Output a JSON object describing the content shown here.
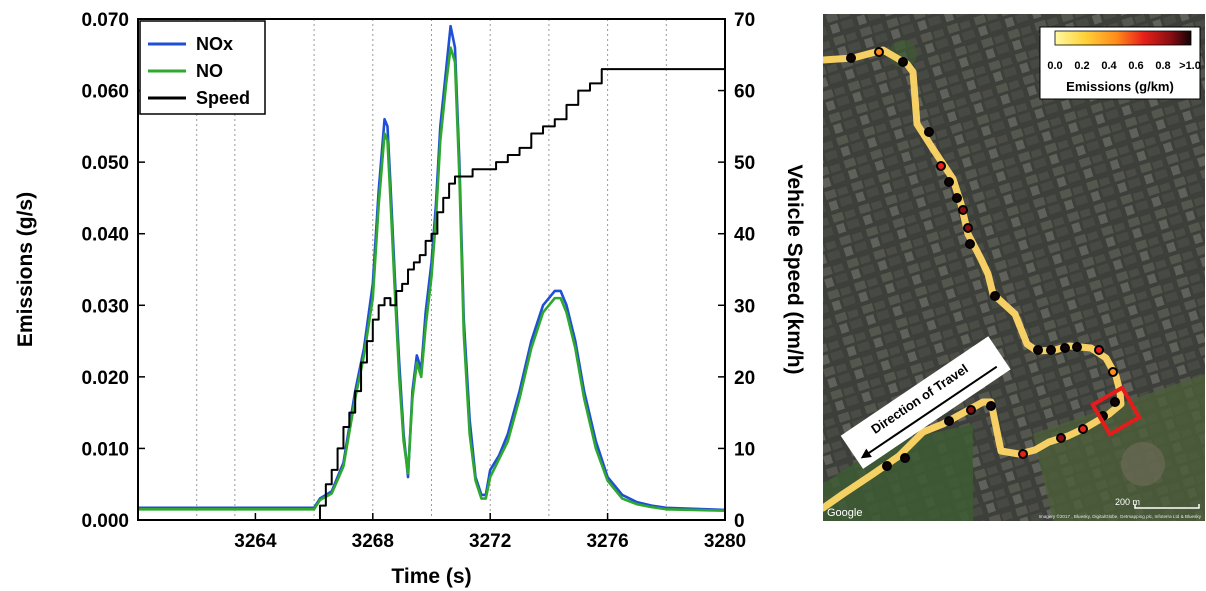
{
  "chart_data": {
    "type": "line",
    "xlabel": "Time (s)",
    "ylabel": "Emissions (g/s)",
    "y2label": "Vehicle Speed (km/h)",
    "xlim": [
      3260,
      3280
    ],
    "ylim": [
      0,
      0.07
    ],
    "y2lim": [
      0,
      70
    ],
    "xticks": [
      "3264",
      "3268",
      "3272",
      "3276",
      "3280"
    ],
    "xtick_values": [
      3264,
      3268,
      3272,
      3276,
      3280
    ],
    "yticks": [
      "0.000",
      "0.010",
      "0.020",
      "0.030",
      "0.040",
      "0.050",
      "0.060",
      "0.070"
    ],
    "ytick_values": [
      0,
      0.01,
      0.02,
      0.03,
      0.04,
      0.05,
      0.06,
      0.07
    ],
    "y2ticks": [
      "0",
      "10",
      "20",
      "30",
      "40",
      "50",
      "60",
      "70"
    ],
    "y2tick_values": [
      0,
      10,
      20,
      30,
      40,
      50,
      60,
      70
    ],
    "vgrid": [
      3262,
      3263.3,
      3266,
      3268,
      3270,
      3272,
      3274,
      3276,
      3278
    ],
    "legend_position": "top-left",
    "series": [
      {
        "name": "NOx",
        "axis": "left",
        "color": "#1f4fd6",
        "x": [
          3260,
          3266,
          3266.2,
          3266.6,
          3267.0,
          3267.4,
          3267.7,
          3268.0,
          3268.2,
          3268.4,
          3268.5,
          3268.6,
          3268.75,
          3268.9,
          3269.05,
          3269.2,
          3269.35,
          3269.5,
          3269.65,
          3269.8,
          3270.0,
          3270.15,
          3270.3,
          3270.5,
          3270.65,
          3270.8,
          3270.95,
          3271.1,
          3271.3,
          3271.5,
          3271.7,
          3271.85,
          3272.0,
          3272.3,
          3272.6,
          3273.0,
          3273.4,
          3273.8,
          3274.2,
          3274.4,
          3274.6,
          3274.9,
          3275.2,
          3275.6,
          3276.0,
          3276.5,
          3277.0,
          3277.5,
          3278,
          3280
        ],
        "y": [
          0.0017,
          0.0017,
          0.003,
          0.004,
          0.008,
          0.018,
          0.024,
          0.033,
          0.046,
          0.056,
          0.055,
          0.047,
          0.034,
          0.022,
          0.012,
          0.006,
          0.018,
          0.023,
          0.021,
          0.029,
          0.036,
          0.044,
          0.055,
          0.063,
          0.069,
          0.066,
          0.05,
          0.028,
          0.014,
          0.006,
          0.0035,
          0.0035,
          0.007,
          0.009,
          0.012,
          0.018,
          0.025,
          0.03,
          0.032,
          0.032,
          0.03,
          0.025,
          0.018,
          0.011,
          0.006,
          0.0035,
          0.0025,
          0.002,
          0.0017,
          0.0014
        ]
      },
      {
        "name": "NO",
        "axis": "left",
        "color": "#2ea82e",
        "x": [
          3260,
          3266,
          3266.2,
          3266.6,
          3267.0,
          3267.4,
          3267.7,
          3268.0,
          3268.2,
          3268.4,
          3268.5,
          3268.6,
          3268.75,
          3268.9,
          3269.05,
          3269.2,
          3269.35,
          3269.5,
          3269.65,
          3269.8,
          3270.0,
          3270.15,
          3270.3,
          3270.5,
          3270.65,
          3270.8,
          3270.95,
          3271.1,
          3271.3,
          3271.5,
          3271.7,
          3271.85,
          3272.0,
          3272.3,
          3272.6,
          3273.0,
          3273.4,
          3273.8,
          3274.2,
          3274.4,
          3274.6,
          3274.9,
          3275.2,
          3275.6,
          3276.0,
          3276.5,
          3277.0,
          3277.5,
          3278,
          3280
        ],
        "y": [
          0.0015,
          0.0015,
          0.0028,
          0.0037,
          0.0075,
          0.017,
          0.023,
          0.031,
          0.044,
          0.054,
          0.053,
          0.045,
          0.032,
          0.02,
          0.011,
          0.0065,
          0.017,
          0.022,
          0.02,
          0.027,
          0.034,
          0.042,
          0.053,
          0.061,
          0.066,
          0.064,
          0.048,
          0.026,
          0.012,
          0.0055,
          0.003,
          0.003,
          0.006,
          0.0085,
          0.011,
          0.017,
          0.024,
          0.029,
          0.031,
          0.031,
          0.029,
          0.024,
          0.017,
          0.01,
          0.0055,
          0.003,
          0.0022,
          0.0018,
          0.0015,
          0.0013
        ]
      },
      {
        "name": "Speed",
        "axis": "right",
        "color": "#000000",
        "step": true,
        "x": [
          3260,
          3266.2,
          3266.4,
          3266.6,
          3266.8,
          3267.0,
          3267.2,
          3267.4,
          3267.6,
          3267.8,
          3268.0,
          3268.2,
          3268.4,
          3268.6,
          3268.8,
          3269.0,
          3269.2,
          3269.4,
          3269.6,
          3269.8,
          3270.0,
          3270.2,
          3270.4,
          3270.6,
          3270.8,
          3271.0,
          3271.4,
          3271.8,
          3272.2,
          3272.6,
          3273.0,
          3273.4,
          3273.8,
          3274.2,
          3274.6,
          3275.0,
          3275.4,
          3275.8,
          3280
        ],
        "y": [
          0,
          2,
          5,
          7,
          10,
          13,
          15,
          18,
          22,
          25,
          28,
          30,
          31,
          30,
          32,
          33,
          35,
          36,
          37,
          39,
          40,
          43,
          45,
          47,
          48,
          48,
          49,
          49,
          50,
          51,
          52,
          54,
          55,
          56,
          58,
          60,
          61,
          63,
          63
        ]
      }
    ]
  },
  "map": {
    "legend_title": "Emissions (g/km)",
    "legend_ticks": [
      "0.0",
      "0.2",
      "0.4",
      "0.6",
      "0.8",
      ">1.0"
    ],
    "gradient_colors": [
      "#fff9a0",
      "#ffd23a",
      "#ff8c1a",
      "#e8201a",
      "#8a0e12",
      "#120406"
    ],
    "arrow_label": "Direction of Travel",
    "scale_label": "200 m",
    "google_text": "Google",
    "imagery_credit": "Imagery ©2017 , Bluesky, DigitalGlobe, Getmapping plc, Infoterra Ltd & Bluesky",
    "highlight_color": "#e51c1c"
  }
}
